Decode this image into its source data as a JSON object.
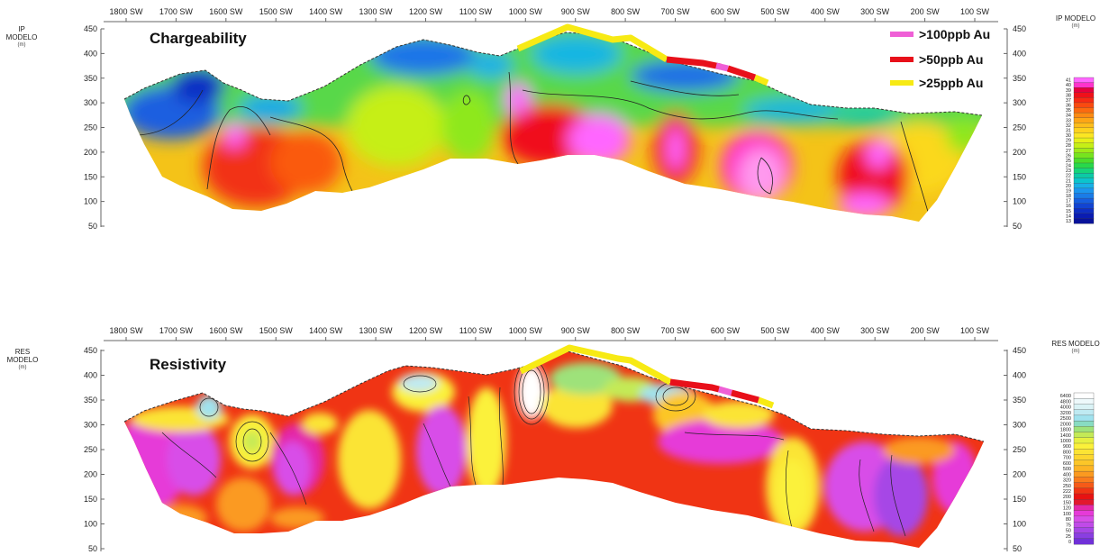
{
  "distance_ticks": [
    "1800 SW",
    "1700 SW",
    "1600 SW",
    "1500 SW",
    "1400 SW",
    "1300 SW",
    "1200 SW",
    "1100 SW",
    "1000 SW",
    "900 SW",
    "800 SW",
    "700 SW",
    "600 SW",
    "500 SW",
    "400 SW",
    "300 SW",
    "200 SW",
    "100 SW"
  ],
  "depth_ticks": [
    "450",
    "400",
    "350",
    "300",
    "250",
    "200",
    "150",
    "100",
    "50"
  ],
  "ip": {
    "axis_label": "IP MODELO",
    "axis_unit": "(m)",
    "colorbar_title": "IP MODELO",
    "colorbar_unit": "(m)",
    "title": "Chargeability",
    "legend": [
      {
        "label": ">100ppb Au",
        "color": "#ef5fd6"
      },
      {
        "label": ">50ppb Au",
        "color": "#e8101a"
      },
      {
        "label": ">25ppb Au",
        "color": "#f7ea14"
      }
    ],
    "colorbar_values": [
      "41",
      "40",
      "39",
      "38",
      "37",
      "36",
      "35",
      "34",
      "33",
      "32",
      "31",
      "30",
      "29",
      "28",
      "27",
      "26",
      "25",
      "24",
      "23",
      "22",
      "21",
      "20",
      "19",
      "18",
      "17",
      "16",
      "15",
      "14",
      "13"
    ],
    "colorbar_colors": [
      "#ff66ff",
      "#ff33cc",
      "#e6003d",
      "#f0101a",
      "#f72a14",
      "#fa4a10",
      "#fb6a10",
      "#fc8a12",
      "#fda516",
      "#fdbd1a",
      "#fdd21e",
      "#fbe622",
      "#e6f018",
      "#c6ef16",
      "#a0ea18",
      "#76e41e",
      "#4cdc2a",
      "#28d84a",
      "#16d47a",
      "#0ccaa6",
      "#0cc4cc",
      "#18b0e6",
      "#1c96ee",
      "#1a7ce8",
      "#165ee0",
      "#1244d2",
      "#0e2ec4",
      "#0a1cb2",
      "#08129a"
    ]
  },
  "res": {
    "axis_label": "RES MODELO",
    "axis_unit": "(m)",
    "colorbar_title": "RES MODELO",
    "colorbar_unit": "(m)",
    "title": "Resistivity",
    "colorbar_values": [
      "6400",
      "4800",
      "4000",
      "3200",
      "2500",
      "2000",
      "1800",
      "1400",
      "1000",
      "900",
      "800",
      "700",
      "600",
      "500",
      "400",
      "320",
      "250",
      "222",
      "200",
      "150",
      "120",
      "100",
      "80",
      "75",
      "50",
      "25",
      "0"
    ],
    "colorbar_colors": [
      "#ffffff",
      "#eef9fb",
      "#daf3f6",
      "#bfeaf2",
      "#a0e2ee",
      "#88dcc2",
      "#9ee27a",
      "#c4ea56",
      "#e6f040",
      "#fbf13a",
      "#fbe434",
      "#fcd62e",
      "#fcc628",
      "#fcb424",
      "#fb9a20",
      "#f97c1c",
      "#f65a18",
      "#f03414",
      "#e81212",
      "#e2182e",
      "#e428a8",
      "#e63ad8",
      "#d84ee8",
      "#c04ae8",
      "#a646e6",
      "#8a3ee2",
      "#7030d8"
    ]
  }
}
